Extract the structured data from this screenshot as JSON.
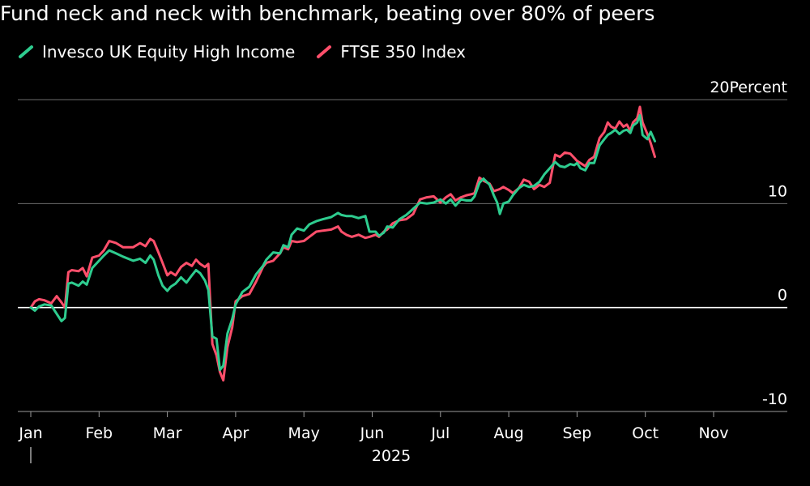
{
  "chart_data": {
    "type": "line",
    "title": "Fund neck and neck with benchmark, beating over 80% of peers",
    "y_unit": "Percent",
    "y_ticks": [
      20,
      10,
      0,
      -10
    ],
    "ylim": [
      -10,
      20
    ],
    "x_ticks": [
      "Jan",
      "Feb",
      "Mar",
      "Apr",
      "May",
      "Jun",
      "Jul",
      "Aug",
      "Sep",
      "Oct",
      "Nov"
    ],
    "year_label": "2025",
    "grid": true,
    "legend_position": "top-left",
    "series": [
      {
        "name": "Invesco UK Equity High Income",
        "color": "#2ecc8f",
        "points": [
          [
            0,
            0
          ],
          [
            0.06,
            -0.3
          ],
          [
            0.12,
            0.1
          ],
          [
            0.2,
            0.3
          ],
          [
            0.3,
            0.2
          ],
          [
            0.38,
            -0.6
          ],
          [
            0.45,
            -1.3
          ],
          [
            0.5,
            -1.0
          ],
          [
            0.55,
            2.3
          ],
          [
            0.6,
            2.4
          ],
          [
            0.7,
            2.1
          ],
          [
            0.76,
            2.5
          ],
          [
            0.82,
            2.2
          ],
          [
            0.9,
            3.8
          ],
          [
            1.0,
            4.5
          ],
          [
            1.07,
            5.0
          ],
          [
            1.15,
            5.5
          ],
          [
            1.25,
            5.2
          ],
          [
            1.35,
            4.9
          ],
          [
            1.5,
            4.5
          ],
          [
            1.6,
            4.7
          ],
          [
            1.68,
            4.3
          ],
          [
            1.75,
            5.0
          ],
          [
            1.8,
            4.6
          ],
          [
            1.87,
            3.1
          ],
          [
            1.93,
            2.1
          ],
          [
            2.0,
            1.6
          ],
          [
            2.05,
            2.0
          ],
          [
            2.12,
            2.3
          ],
          [
            2.2,
            2.9
          ],
          [
            2.28,
            2.4
          ],
          [
            2.36,
            3.1
          ],
          [
            2.42,
            3.6
          ],
          [
            2.48,
            3.3
          ],
          [
            2.55,
            2.6
          ],
          [
            2.6,
            1.7
          ],
          [
            2.66,
            -2.8
          ],
          [
            2.72,
            -3.0
          ],
          [
            2.77,
            -6.0
          ],
          [
            2.82,
            -5.6
          ],
          [
            2.88,
            -2.5
          ],
          [
            2.95,
            -1.1
          ],
          [
            3.0,
            0.3
          ],
          [
            3.1,
            1.5
          ],
          [
            3.2,
            2.0
          ],
          [
            3.3,
            3.2
          ],
          [
            3.4,
            4.0
          ],
          [
            3.45,
            4.6
          ],
          [
            3.55,
            5.3
          ],
          [
            3.65,
            5.2
          ],
          [
            3.7,
            6.0
          ],
          [
            3.77,
            5.8
          ],
          [
            3.82,
            7.0
          ],
          [
            3.9,
            7.6
          ],
          [
            4.0,
            7.4
          ],
          [
            4.08,
            8.0
          ],
          [
            4.18,
            8.3
          ],
          [
            4.28,
            8.5
          ],
          [
            4.4,
            8.7
          ],
          [
            4.5,
            9.1
          ],
          [
            4.55,
            8.9
          ],
          [
            4.62,
            8.8
          ],
          [
            4.7,
            8.8
          ],
          [
            4.8,
            8.6
          ],
          [
            4.9,
            8.8
          ],
          [
            4.96,
            7.3
          ],
          [
            5.05,
            7.3
          ],
          [
            5.1,
            6.9
          ],
          [
            5.17,
            7.2
          ],
          [
            5.22,
            7.8
          ],
          [
            5.3,
            7.7
          ],
          [
            5.4,
            8.5
          ],
          [
            5.5,
            8.9
          ],
          [
            5.6,
            9.5
          ],
          [
            5.7,
            10.1
          ],
          [
            5.8,
            10.0
          ],
          [
            5.9,
            10.1
          ],
          [
            6.0,
            10.4
          ],
          [
            6.08,
            10.0
          ],
          [
            6.15,
            10.4
          ],
          [
            6.22,
            9.8
          ],
          [
            6.3,
            10.4
          ],
          [
            6.38,
            10.3
          ],
          [
            6.45,
            10.3
          ],
          [
            6.5,
            10.7
          ],
          [
            6.57,
            12.0
          ],
          [
            6.63,
            12.4
          ],
          [
            6.72,
            11.8
          ],
          [
            6.78,
            10.8
          ],
          [
            6.83,
            10.1
          ],
          [
            6.87,
            9.0
          ],
          [
            6.92,
            10.0
          ],
          [
            7.0,
            10.2
          ],
          [
            7.06,
            10.8
          ],
          [
            7.15,
            11.5
          ],
          [
            7.22,
            11.8
          ],
          [
            7.3,
            11.6
          ],
          [
            7.37,
            11.7
          ],
          [
            7.45,
            12.1
          ],
          [
            7.52,
            12.8
          ],
          [
            7.6,
            13.4
          ],
          [
            7.68,
            14.0
          ],
          [
            7.75,
            13.6
          ],
          [
            7.82,
            13.5
          ],
          [
            7.9,
            13.8
          ],
          [
            7.96,
            13.7
          ],
          [
            8.0,
            13.9
          ],
          [
            8.05,
            13.4
          ],
          [
            8.12,
            13.2
          ],
          [
            8.18,
            13.9
          ],
          [
            8.25,
            13.9
          ],
          [
            8.33,
            15.6
          ],
          [
            8.4,
            16.2
          ],
          [
            8.45,
            16.6
          ],
          [
            8.5,
            16.8
          ],
          [
            8.56,
            17.1
          ],
          [
            8.62,
            16.7
          ],
          [
            8.68,
            17.0
          ],
          [
            8.73,
            17.1
          ],
          [
            8.78,
            16.8
          ],
          [
            8.82,
            17.5
          ],
          [
            8.88,
            17.8
          ],
          [
            8.92,
            18.5
          ],
          [
            8.96,
            16.6
          ],
          [
            9.03,
            16.2
          ],
          [
            9.08,
            16.9
          ],
          [
            9.14,
            16.0
          ]
        ]
      },
      {
        "name": "FTSE 350 Index",
        "color": "#ff4f6b",
        "points": [
          [
            0,
            0
          ],
          [
            0.06,
            0.6
          ],
          [
            0.12,
            0.8
          ],
          [
            0.2,
            0.7
          ],
          [
            0.3,
            0.4
          ],
          [
            0.38,
            1.1
          ],
          [
            0.45,
            0.5
          ],
          [
            0.5,
            0.0
          ],
          [
            0.55,
            3.4
          ],
          [
            0.6,
            3.6
          ],
          [
            0.7,
            3.5
          ],
          [
            0.76,
            3.8
          ],
          [
            0.82,
            3.0
          ],
          [
            0.9,
            4.8
          ],
          [
            1.0,
            5.0
          ],
          [
            1.07,
            5.5
          ],
          [
            1.15,
            6.4
          ],
          [
            1.25,
            6.2
          ],
          [
            1.35,
            5.8
          ],
          [
            1.5,
            5.8
          ],
          [
            1.6,
            6.2
          ],
          [
            1.68,
            5.9
          ],
          [
            1.75,
            6.6
          ],
          [
            1.8,
            6.4
          ],
          [
            1.87,
            5.3
          ],
          [
            1.93,
            4.3
          ],
          [
            2.0,
            3.1
          ],
          [
            2.05,
            3.4
          ],
          [
            2.12,
            3.1
          ],
          [
            2.2,
            3.9
          ],
          [
            2.28,
            4.3
          ],
          [
            2.36,
            4.0
          ],
          [
            2.42,
            4.6
          ],
          [
            2.48,
            4.2
          ],
          [
            2.55,
            3.9
          ],
          [
            2.6,
            4.2
          ],
          [
            2.66,
            -3.5
          ],
          [
            2.72,
            -4.6
          ],
          [
            2.77,
            -6.2
          ],
          [
            2.82,
            -7.0
          ],
          [
            2.88,
            -3.8
          ],
          [
            2.95,
            -1.9
          ],
          [
            3.0,
            0.6
          ],
          [
            3.1,
            1.1
          ],
          [
            3.2,
            1.3
          ],
          [
            3.3,
            2.5
          ],
          [
            3.4,
            3.9
          ],
          [
            3.45,
            4.3
          ],
          [
            3.55,
            4.5
          ],
          [
            3.65,
            5.2
          ],
          [
            3.7,
            5.8
          ],
          [
            3.77,
            5.6
          ],
          [
            3.82,
            6.4
          ],
          [
            3.9,
            6.3
          ],
          [
            4.0,
            6.4
          ],
          [
            4.08,
            6.8
          ],
          [
            4.18,
            7.3
          ],
          [
            4.28,
            7.4
          ],
          [
            4.4,
            7.5
          ],
          [
            4.5,
            7.8
          ],
          [
            4.55,
            7.3
          ],
          [
            4.62,
            7.0
          ],
          [
            4.7,
            6.8
          ],
          [
            4.8,
            7.0
          ],
          [
            4.9,
            6.7
          ],
          [
            4.96,
            6.8
          ],
          [
            5.05,
            7.0
          ],
          [
            5.1,
            6.8
          ],
          [
            5.17,
            7.3
          ],
          [
            5.22,
            7.5
          ],
          [
            5.3,
            8.1
          ],
          [
            5.4,
            8.4
          ],
          [
            5.5,
            8.5
          ],
          [
            5.6,
            9.0
          ],
          [
            5.7,
            10.4
          ],
          [
            5.8,
            10.6
          ],
          [
            5.9,
            10.7
          ],
          [
            6.0,
            10.1
          ],
          [
            6.08,
            10.6
          ],
          [
            6.15,
            10.9
          ],
          [
            6.22,
            10.3
          ],
          [
            6.3,
            10.6
          ],
          [
            6.38,
            10.8
          ],
          [
            6.45,
            10.9
          ],
          [
            6.5,
            11.0
          ],
          [
            6.57,
            12.5
          ],
          [
            6.63,
            12.2
          ],
          [
            6.72,
            11.9
          ],
          [
            6.78,
            11.2
          ],
          [
            6.83,
            11.3
          ],
          [
            6.87,
            11.4
          ],
          [
            6.92,
            11.6
          ],
          [
            7.0,
            11.3
          ],
          [
            7.06,
            11.0
          ],
          [
            7.15,
            11.5
          ],
          [
            7.22,
            12.3
          ],
          [
            7.3,
            12.1
          ],
          [
            7.37,
            11.4
          ],
          [
            7.45,
            11.8
          ],
          [
            7.52,
            11.6
          ],
          [
            7.6,
            12.0
          ],
          [
            7.68,
            14.7
          ],
          [
            7.75,
            14.5
          ],
          [
            7.82,
            14.9
          ],
          [
            7.9,
            14.8
          ],
          [
            7.96,
            14.4
          ],
          [
            8.0,
            14.1
          ],
          [
            8.05,
            13.9
          ],
          [
            8.12,
            13.6
          ],
          [
            8.18,
            14.2
          ],
          [
            8.25,
            14.5
          ],
          [
            8.33,
            16.3
          ],
          [
            8.4,
            16.9
          ],
          [
            8.45,
            17.8
          ],
          [
            8.5,
            17.4
          ],
          [
            8.56,
            17.2
          ],
          [
            8.62,
            17.9
          ],
          [
            8.68,
            17.4
          ],
          [
            8.73,
            17.6
          ],
          [
            8.78,
            17.0
          ],
          [
            8.82,
            17.8
          ],
          [
            8.88,
            18.2
          ],
          [
            8.92,
            19.3
          ],
          [
            8.96,
            17.8
          ],
          [
            9.03,
            16.7
          ],
          [
            9.08,
            15.8
          ],
          [
            9.14,
            14.5
          ]
        ]
      }
    ]
  }
}
